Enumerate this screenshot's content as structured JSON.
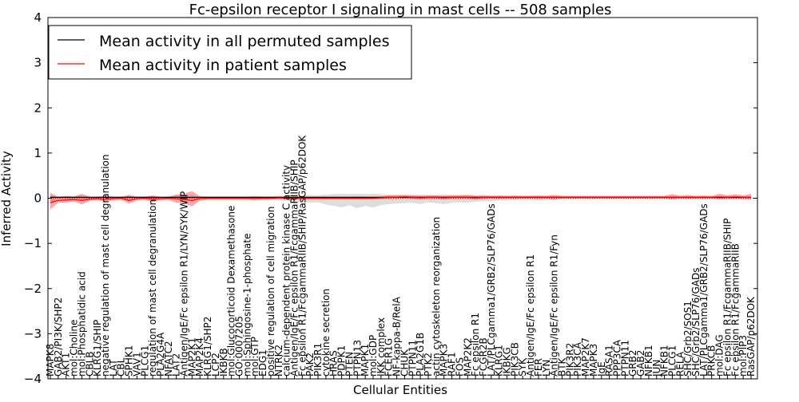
{
  "chart_data": {
    "type": "line",
    "title": "Fc-epsilon receptor I signaling in mast cells -- 508 samples",
    "xlabel": "Cellular Entities",
    "ylabel": "Inferred Activity",
    "ylim": [
      -4,
      4
    ],
    "yticks": [
      "4",
      "3",
      "2",
      "1",
      "0",
      "−1",
      "−2",
      "−3",
      "−4"
    ],
    "ytick_values": [
      4,
      3,
      2,
      1,
      0,
      -1,
      -2,
      -3,
      -4
    ],
    "grid": false,
    "legend_position": "top-left",
    "categories": [
      "MAPK8",
      "GAB2/PI3K/SHP2",
      "AKT1",
      "mol:Choline",
      "mol:Phosphatidic acid",
      "CBLB",
      "KLRG1/SHIP",
      "negative regulation of mast cell degranulation",
      "LAT",
      "CBL",
      "SPHK1",
      "VAV1",
      "PLCG1",
      "regulation of mast cell degranulation",
      "PLA2G4A",
      "NFATC2",
      "LAT2",
      "Antigen/IgE/Fc epsilon R1/LYN/SYK/WIP",
      "MAP2K1",
      "MAP2K4",
      "KLRG1/SHP2",
      "LCP2",
      "IKBKB",
      "mol:Glucocorticoid Dexamethasone",
      "GO:0007205",
      "mol:Sphingosine-1-phosphate",
      "mol:GTP",
      "EDG1",
      "positive regulation of cell migration",
      "NTRK2",
      "calcium-dependent protein kinase C activity",
      "Antigen/IgE/Fc epsilon R1/FcgammaRIIB/SHIP",
      "Fc epsilon R1/FcgammaRIIB/SHIP/RasGAP/p62DOK",
      "PAK2",
      "PIK3R1",
      "cytokine secretion",
      "HRAS",
      "PDPK1",
      "PTEN",
      "PTPN13",
      "MAPK1",
      "mol:GDP",
      "IKK complex",
      "FCER1G",
      "NF-kappa-B/RelA",
      "CHUK",
      "PTPN11",
      "PLA2G1B",
      "PTK2",
      "actin cytoskeleton reorganization",
      "MAPK3",
      "RAF1",
      "FOS",
      "MAP2K2",
      "Fc epsilon R1",
      "FCGR2B",
      "LAT/PLCgamma1/GRB2/SLP76/GADs",
      "KLRG1",
      "IKBKG",
      "PIK3CB",
      "SYK",
      "Antigen/IgE/Fc epsilon R1",
      "FER",
      "LYN",
      "Antigen/IgE/Fc epsilon R1/Fyn",
      "BTK",
      "PIK3R2",
      "PIK3CA",
      "MAP2K7",
      "MAPK3",
      "IgE",
      "RASA1",
      "PPP3CA",
      "PTPN11",
      "GRB2",
      "GAB2",
      "NFKB1",
      "JUN",
      "NFKB1",
      "PLCG1",
      "RELA",
      "SHC/Grb2/SOS1",
      "SHC/Grb2/SLP76/GADs",
      "LAT/PLCgamma1/GRB2/SLP76/GADs",
      "PRKCB",
      "mol:DAG",
      "Fc epsilon R1/FcgammaRIIB/SHIP",
      "Fc epsilon R1/FcgammaRIIB",
      "mol:PIP3",
      "RasGAP/p62DOK"
    ],
    "series": [
      {
        "name": "Mean activity in all permuted samples",
        "color": "#000000",
        "values": [
          0.02,
          0.02,
          0.02,
          0.02,
          0.02,
          0.02,
          0.02,
          0.02,
          0.02,
          0.02,
          0.02,
          0.02,
          0.02,
          0.02,
          0.02,
          0.02,
          0.02,
          0.02,
          0.02,
          0.02,
          0.02,
          0.02,
          0.02,
          0.02,
          0.02,
          0.02,
          0.02,
          0.02,
          0.02,
          0.02,
          0.02,
          0.02,
          0.02,
          0.02,
          0.02,
          0.02,
          0.02,
          0.02,
          0.02,
          0.02,
          0.02,
          0.02,
          0.02,
          0.02,
          0.02,
          0.02,
          0.02,
          0.02,
          0.02,
          0.02,
          0.02,
          0.02,
          0.02,
          0.02,
          0.02,
          0.02,
          0.02,
          0.02,
          0.02,
          0.02,
          0.02,
          0.02,
          0.02,
          0.02,
          0.02,
          0.02,
          0.02,
          0.02,
          0.02,
          0.02,
          0.02,
          0.02,
          0.02,
          0.02,
          0.02,
          0.02,
          0.02,
          0.02,
          0.02,
          0.02,
          0.02,
          0.02,
          0.02,
          0.02,
          0.02,
          0.02,
          0.02,
          0.02,
          0.02,
          0.02
        ],
        "band_upper": [
          0.06,
          0.04,
          0.05,
          0.04,
          0.06,
          0.04,
          0.04,
          0.05,
          0.04,
          0.04,
          0.06,
          0.04,
          0.04,
          0.05,
          0.04,
          0.04,
          0.06,
          0.05,
          0.05,
          0.04,
          0.04,
          0.04,
          0.04,
          0.04,
          0.04,
          0.04,
          0.05,
          0.04,
          0.04,
          0.05,
          0.05,
          0.05,
          0.06,
          0.07,
          0.06,
          0.08,
          0.09,
          0.1,
          0.09,
          0.1,
          0.09,
          0.1,
          0.09,
          0.08,
          0.08,
          0.07,
          0.07,
          0.08,
          0.07,
          0.07,
          0.08,
          0.07,
          0.07,
          0.07,
          0.06,
          0.06,
          0.06,
          0.05,
          0.05,
          0.05,
          0.05,
          0.05,
          0.05,
          0.05,
          0.05,
          0.04,
          0.04,
          0.04,
          0.04,
          0.04,
          0.04,
          0.04,
          0.04,
          0.04,
          0.04,
          0.04,
          0.04,
          0.04,
          0.04,
          0.04,
          0.04,
          0.04,
          0.04,
          0.04,
          0.04,
          0.04,
          0.04,
          0.04,
          0.04,
          0.04
        ],
        "band_lower": [
          -0.12,
          -0.02,
          -0.02,
          -0.03,
          -0.05,
          -0.02,
          -0.02,
          -0.03,
          -0.02,
          -0.02,
          -0.06,
          -0.02,
          -0.02,
          -0.04,
          -0.02,
          -0.02,
          -0.04,
          -0.03,
          -0.02,
          -0.02,
          -0.02,
          -0.02,
          -0.02,
          -0.02,
          -0.02,
          -0.02,
          -0.04,
          -0.02,
          -0.02,
          -0.05,
          -0.06,
          -0.07,
          -0.08,
          -0.1,
          -0.09,
          -0.14,
          -0.17,
          -0.2,
          -0.16,
          -0.22,
          -0.17,
          -0.21,
          -0.15,
          -0.13,
          -0.12,
          -0.11,
          -0.1,
          -0.13,
          -0.09,
          -0.11,
          -0.13,
          -0.1,
          -0.09,
          -0.1,
          -0.08,
          -0.07,
          -0.07,
          -0.05,
          -0.05,
          -0.04,
          -0.04,
          -0.04,
          -0.05,
          -0.04,
          -0.04,
          -0.02,
          -0.02,
          -0.02,
          -0.02,
          -0.02,
          -0.02,
          -0.02,
          -0.02,
          -0.02,
          -0.02,
          -0.02,
          -0.02,
          -0.02,
          -0.02,
          -0.02,
          -0.02,
          -0.02,
          -0.02,
          -0.02,
          -0.02,
          -0.02,
          -0.02,
          -0.02,
          -0.02,
          -0.02
        ]
      },
      {
        "name": "Mean activity in patient samples",
        "color": "#ff0000",
        "values": [
          -0.1,
          -0.05,
          -0.04,
          -0.03,
          -0.05,
          -0.02,
          -0.01,
          -0.03,
          -0.01,
          0.0,
          -0.05,
          -0.01,
          0.0,
          -0.02,
          -0.01,
          0.0,
          -0.01,
          -0.03,
          -0.05,
          -0.01,
          0.0,
          0.0,
          0.0,
          0.0,
          0.0,
          0.0,
          0.0,
          0.0,
          0.0,
          0.01,
          0.0,
          0.0,
          0.0,
          0.0,
          0.0,
          0.0,
          0.0,
          0.0,
          0.0,
          0.0,
          0.0,
          0.0,
          0.01,
          0.02,
          0.02,
          0.03,
          0.02,
          0.01,
          0.02,
          0.02,
          0.01,
          0.02,
          0.02,
          0.02,
          0.01,
          0.02,
          0.02,
          0.02,
          0.02,
          0.02,
          0.02,
          0.02,
          0.02,
          0.02,
          0.02,
          0.02,
          0.02,
          0.02,
          0.02,
          0.02,
          0.02,
          0.02,
          0.02,
          0.02,
          0.02,
          0.02,
          0.02,
          0.02,
          0.02,
          0.02,
          0.02,
          0.02,
          0.02,
          0.02,
          0.02,
          0.03,
          0.02,
          0.03,
          0.02,
          0.02
        ],
        "band_upper": [
          0.12,
          0.03,
          0.05,
          0.04,
          0.1,
          0.03,
          0.03,
          0.05,
          0.03,
          0.03,
          0.07,
          0.03,
          0.03,
          0.06,
          0.03,
          0.03,
          0.08,
          0.1,
          0.16,
          0.04,
          0.03,
          0.03,
          0.03,
          0.03,
          0.03,
          0.03,
          0.04,
          0.03,
          0.03,
          0.04,
          0.03,
          0.03,
          0.03,
          0.03,
          0.03,
          0.03,
          0.03,
          0.03,
          0.03,
          0.03,
          0.03,
          0.03,
          0.04,
          0.06,
          0.06,
          0.07,
          0.06,
          0.05,
          0.06,
          0.06,
          0.05,
          0.06,
          0.06,
          0.07,
          0.05,
          0.06,
          0.05,
          0.06,
          0.05,
          0.06,
          0.05,
          0.05,
          0.06,
          0.05,
          0.07,
          0.05,
          0.05,
          0.05,
          0.05,
          0.05,
          0.05,
          0.05,
          0.05,
          0.05,
          0.05,
          0.05,
          0.05,
          0.05,
          0.05,
          0.09,
          0.05,
          0.07,
          0.05,
          0.06,
          0.05,
          0.1,
          0.06,
          0.09,
          0.06,
          0.1
        ],
        "band_lower": [
          -0.25,
          -0.1,
          -0.1,
          -0.07,
          -0.14,
          -0.06,
          -0.05,
          -0.08,
          -0.05,
          -0.04,
          -0.12,
          -0.05,
          -0.04,
          -0.09,
          -0.05,
          -0.04,
          -0.1,
          -0.12,
          -0.18,
          -0.06,
          -0.04,
          -0.04,
          -0.04,
          -0.04,
          -0.04,
          -0.04,
          -0.05,
          -0.04,
          -0.04,
          -0.02,
          -0.03,
          -0.03,
          -0.03,
          -0.03,
          -0.03,
          -0.03,
          -0.03,
          -0.03,
          -0.03,
          -0.03,
          -0.03,
          -0.03,
          -0.02,
          -0.02,
          -0.02,
          -0.01,
          -0.02,
          -0.03,
          -0.02,
          -0.02,
          -0.03,
          -0.02,
          -0.02,
          -0.02,
          -0.03,
          -0.02,
          -0.01,
          -0.02,
          -0.01,
          -0.02,
          -0.01,
          -0.01,
          -0.02,
          -0.01,
          -0.03,
          -0.01,
          -0.01,
          -0.01,
          -0.01,
          -0.01,
          -0.01,
          -0.01,
          -0.01,
          -0.01,
          -0.01,
          -0.01,
          -0.01,
          -0.01,
          -0.01,
          -0.03,
          -0.01,
          -0.02,
          -0.01,
          -0.02,
          -0.01,
          -0.03,
          -0.02,
          -0.02,
          -0.02,
          -0.03
        ]
      }
    ],
    "reference_line": {
      "y": 0,
      "style": "dotted",
      "color": "#ff0000"
    }
  }
}
